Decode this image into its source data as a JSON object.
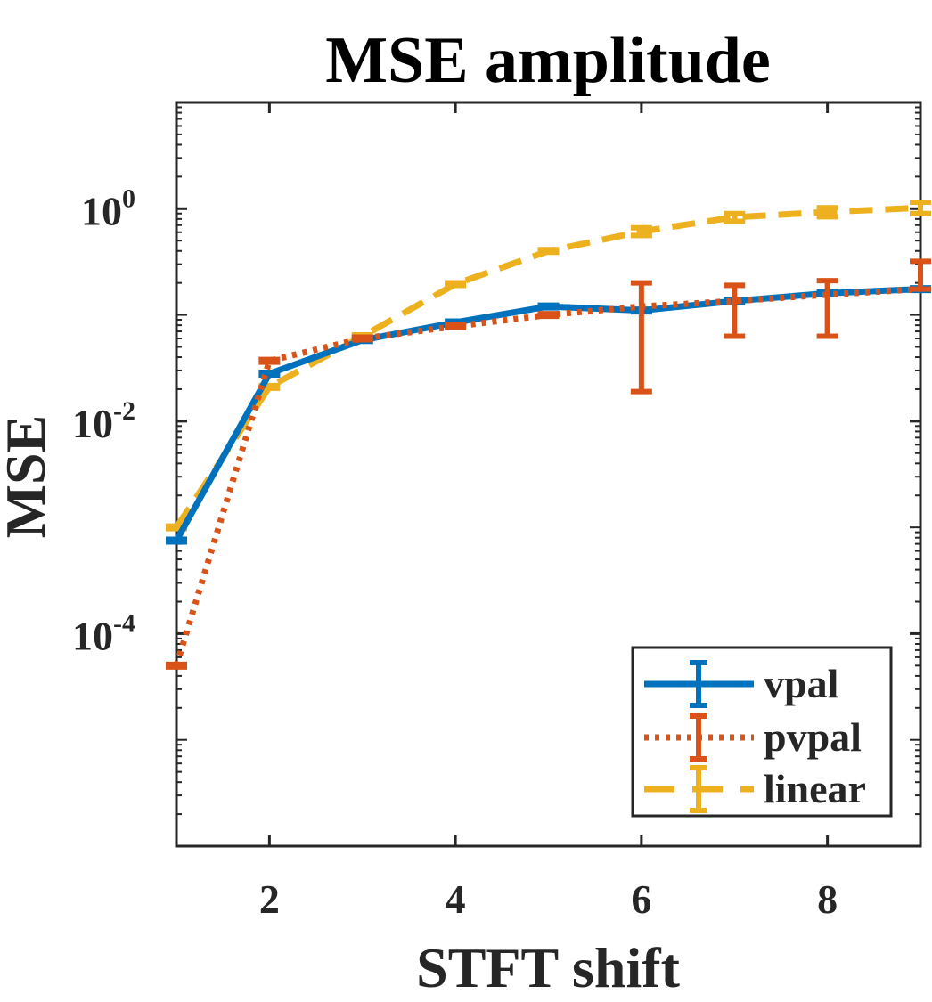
{
  "chart_data": {
    "type": "line",
    "title": "MSE amplitude",
    "xlabel": "STFT shift",
    "ylabel": "MSE",
    "yscale": "log",
    "xlim": [
      1,
      9
    ],
    "ylim": [
      1e-06,
      10
    ],
    "grid": false,
    "legend_position": "bottom-right",
    "x": [
      1,
      2,
      3,
      4,
      5,
      6,
      7,
      8,
      9
    ],
    "x_ticks": [
      2,
      4,
      6,
      8
    ],
    "x_tick_labels": [
      "2",
      "4",
      "6",
      "8"
    ],
    "y_ticks": [
      {
        "value": 0.0001,
        "base": "10",
        "exp": "-4"
      },
      {
        "value": 0.01,
        "base": "10",
        "exp": "-2"
      },
      {
        "value": 1,
        "base": "10",
        "exp": "0"
      }
    ],
    "series": [
      {
        "name": "vpal",
        "color": "#0072BD",
        "style": "solid",
        "values": [
          0.00075,
          0.028,
          0.058,
          0.085,
          0.12,
          0.11,
          0.135,
          0.16,
          0.175
        ],
        "err_low": [
          0.00075,
          0.028,
          0.058,
          0.085,
          0.12,
          0.11,
          0.135,
          0.16,
          0.175
        ],
        "err_high": [
          0.00075,
          0.028,
          0.058,
          0.085,
          0.12,
          0.11,
          0.135,
          0.16,
          0.175
        ]
      },
      {
        "name": "pvpal",
        "color": "#D95319",
        "style": "dotted",
        "values": [
          5e-05,
          0.037,
          0.06,
          0.078,
          0.1,
          0.12,
          0.135,
          0.155,
          0.175
        ],
        "err_low": [
          5e-05,
          0.037,
          0.06,
          0.078,
          0.1,
          0.019,
          0.063,
          0.063,
          0.175
        ],
        "err_high": [
          5e-05,
          0.037,
          0.06,
          0.078,
          0.1,
          0.2,
          0.19,
          0.21,
          0.32
        ]
      },
      {
        "name": "linear",
        "color": "#EDB120",
        "style": "dashed",
        "values": [
          0.001,
          0.021,
          0.063,
          0.195,
          0.4,
          0.61,
          0.83,
          0.93,
          1.02
        ],
        "err_low": [
          0.001,
          0.021,
          0.063,
          0.195,
          0.4,
          0.56,
          0.76,
          0.84,
          0.9
        ],
        "err_high": [
          0.001,
          0.021,
          0.063,
          0.195,
          0.4,
          0.66,
          0.9,
          1.02,
          1.15
        ]
      }
    ]
  }
}
